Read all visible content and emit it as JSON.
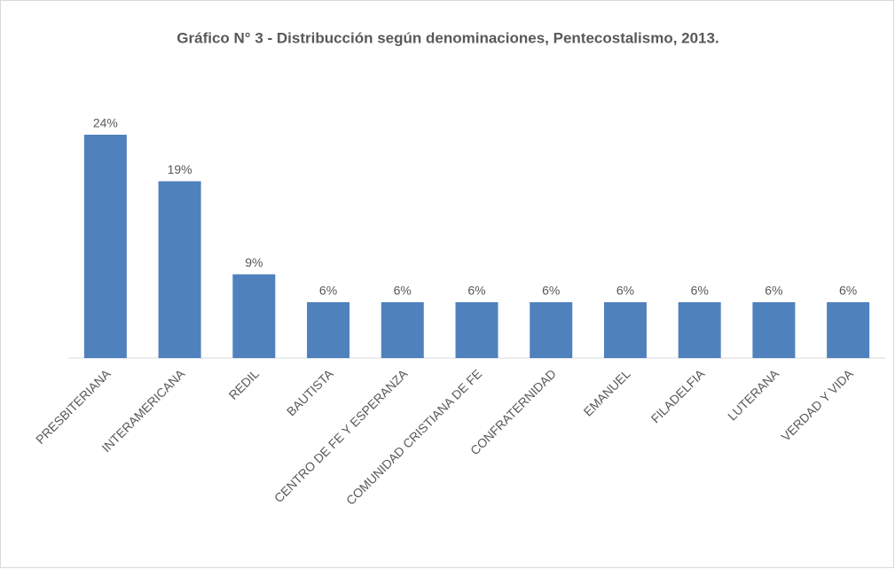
{
  "chart_data": {
    "type": "bar",
    "title": "Gráfico N° 3 - Distribucción según denominaciones, Pentecostalismo, 2013.",
    "categories": [
      "PRESBITERIANA",
      "INTERAMERICANA",
      "REDIL",
      "BAUTISTA",
      "CENTRO DE FE Y ESPERANZA",
      "COMUNIDAD CRISTIANA DE FE",
      "CONFRATERNIDAD",
      "EMANUEL",
      "FILADELFIA",
      "LUTERANA",
      "VERDAD Y VIDA"
    ],
    "values": [
      24,
      19,
      9,
      6,
      6,
      6,
      6,
      6,
      6,
      6,
      6
    ],
    "value_labels": [
      "24%",
      "19%",
      "9%",
      "6%",
      "6%",
      "6%",
      "6%",
      "6%",
      "6%",
      "6%",
      "6%"
    ],
    "color": "#4f81bd"
  }
}
